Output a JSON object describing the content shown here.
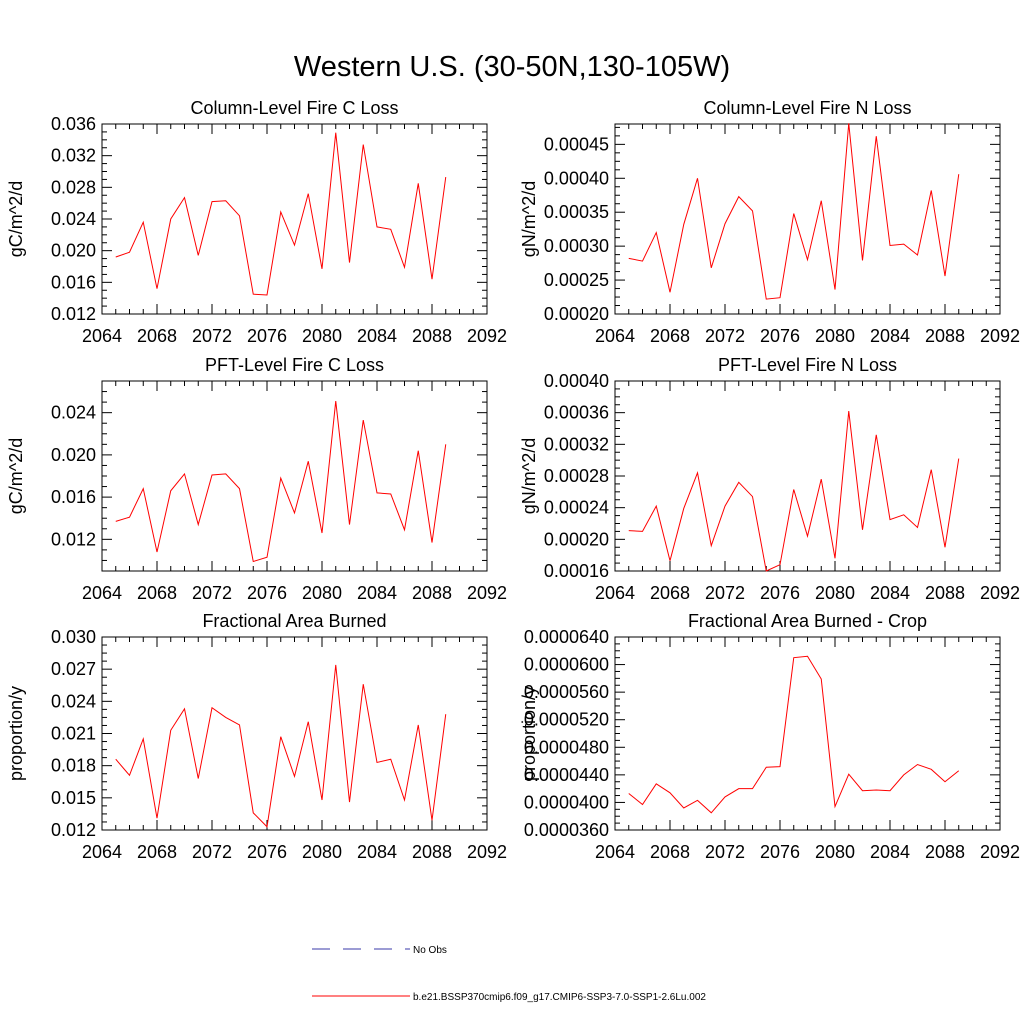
{
  "page_title": "Western U.S. (30-50N,130-105W)",
  "legend": {
    "obs_label": "No Obs",
    "model_label": "b.e21.BSSP370cmip6.f09_g17.CMIP6-SSP3-7.0-SSP1-2.6Lu.002",
    "model_color": "#ff0000",
    "obs_color": "#3a3aa8"
  },
  "chart_data": [
    {
      "type": "line",
      "title": "Column-Level Fire C Loss",
      "ylabel": "gC/m^2/d",
      "xlim": [
        2064,
        2092
      ],
      "ylim": [
        0.012,
        0.036
      ],
      "xticks": [
        "2064",
        "2068",
        "2072",
        "2076",
        "2080",
        "2084",
        "2088",
        "2092"
      ],
      "yticks": [
        "0.012",
        "0.016",
        "0.020",
        "0.024",
        "0.028",
        "0.032",
        "0.036"
      ],
      "series": [
        {
          "color": "#ff0000",
          "x": [
            2065,
            2066,
            2067,
            2068,
            2069,
            2070,
            2071,
            2072,
            2073,
            2074,
            2075,
            2076,
            2077,
            2078,
            2079,
            2080,
            2081,
            2082,
            2083,
            2084,
            2085,
            2086,
            2087,
            2088,
            2089
          ],
          "y": [
            0.0192,
            0.0198,
            0.0236,
            0.0152,
            0.024,
            0.0267,
            0.0194,
            0.0262,
            0.0263,
            0.0244,
            0.0145,
            0.0144,
            0.0249,
            0.0207,
            0.0272,
            0.0177,
            0.0349,
            0.0185,
            0.0334,
            0.023,
            0.0227,
            0.0179,
            0.0285,
            0.0164,
            0.0293
          ]
        }
      ]
    },
    {
      "type": "line",
      "title": "Column-Level Fire N Loss",
      "ylabel": "gN/m^2/d",
      "xlim": [
        2064,
        2092
      ],
      "ylim": [
        0.0002,
        0.00048
      ],
      "xticks": [
        "2064",
        "2068",
        "2072",
        "2076",
        "2080",
        "2084",
        "2088",
        "2092"
      ],
      "yticks": [
        "0.00020",
        "0.00025",
        "0.00030",
        "0.00035",
        "0.00040",
        "0.00045"
      ],
      "series": [
        {
          "color": "#ff0000",
          "x": [
            2065,
            2066,
            2067,
            2068,
            2069,
            2070,
            2071,
            2072,
            2073,
            2074,
            2075,
            2076,
            2077,
            2078,
            2079,
            2080,
            2081,
            2082,
            2083,
            2084,
            2085,
            2086,
            2087,
            2088,
            2089
          ],
          "y": [
            0.000282,
            0.000278,
            0.00032,
            0.000232,
            0.000332,
            0.0004,
            0.000268,
            0.000333,
            0.000373,
            0.000352,
            0.000222,
            0.000224,
            0.000348,
            0.00028,
            0.000367,
            0.000236,
            0.000481,
            0.000279,
            0.000462,
            0.000301,
            0.000303,
            0.000287,
            0.000382,
            0.000256,
            0.000406
          ]
        }
      ]
    },
    {
      "type": "line",
      "title": "PFT-Level Fire C Loss",
      "ylabel": "gC/m^2/d",
      "xlim": [
        2064,
        2092
      ],
      "ylim": [
        0.009,
        0.027
      ],
      "xticks": [
        "2064",
        "2068",
        "2072",
        "2076",
        "2080",
        "2084",
        "2088",
        "2092"
      ],
      "yticks": [
        "0.012",
        "0.016",
        "0.020",
        "0.024"
      ],
      "series": [
        {
          "color": "#ff0000",
          "x": [
            2065,
            2066,
            2067,
            2068,
            2069,
            2070,
            2071,
            2072,
            2073,
            2074,
            2075,
            2076,
            2077,
            2078,
            2079,
            2080,
            2081,
            2082,
            2083,
            2084,
            2085,
            2086,
            2087,
            2088,
            2089
          ],
          "y": [
            0.0137,
            0.0141,
            0.0168,
            0.0108,
            0.0166,
            0.0182,
            0.0134,
            0.0181,
            0.0182,
            0.0168,
            0.0099,
            0.0103,
            0.0178,
            0.0145,
            0.0194,
            0.0126,
            0.0251,
            0.0134,
            0.0233,
            0.0164,
            0.0163,
            0.0129,
            0.0204,
            0.0117,
            0.021
          ]
        }
      ]
    },
    {
      "type": "line",
      "title": "PFT-Level Fire N Loss",
      "ylabel": "gN/m^2/d",
      "xlim": [
        2064,
        2092
      ],
      "ylim": [
        0.00016,
        0.0004
      ],
      "xticks": [
        "2064",
        "2068",
        "2072",
        "2076",
        "2080",
        "2084",
        "2088",
        "2092"
      ],
      "yticks": [
        "0.00016",
        "0.00020",
        "0.00024",
        "0.00028",
        "0.00032",
        "0.00036",
        "0.00040"
      ],
      "series": [
        {
          "color": "#ff0000",
          "x": [
            2065,
            2066,
            2067,
            2068,
            2069,
            2070,
            2071,
            2072,
            2073,
            2074,
            2075,
            2076,
            2077,
            2078,
            2079,
            2080,
            2081,
            2082,
            2083,
            2084,
            2085,
            2086,
            2087,
            2088,
            2089
          ],
          "y": [
            0.000211,
            0.00021,
            0.000242,
            0.000173,
            0.000239,
            0.000284,
            0.000192,
            0.000242,
            0.000272,
            0.000254,
            0.00016,
            0.000168,
            0.000263,
            0.000204,
            0.000276,
            0.000176,
            0.000362,
            0.000212,
            0.000332,
            0.000225,
            0.000231,
            0.000215,
            0.000288,
            0.00019,
            0.000302
          ]
        }
      ]
    },
    {
      "type": "line",
      "title": "Fractional Area Burned",
      "ylabel": "proportion/y",
      "xlim": [
        2064,
        2092
      ],
      "ylim": [
        0.012,
        0.03
      ],
      "xticks": [
        "2064",
        "2068",
        "2072",
        "2076",
        "2080",
        "2084",
        "2088",
        "2092"
      ],
      "yticks": [
        "0.012",
        "0.015",
        "0.018",
        "0.021",
        "0.024",
        "0.027",
        "0.030"
      ],
      "series": [
        {
          "color": "#ff0000",
          "x": [
            2065,
            2066,
            2067,
            2068,
            2069,
            2070,
            2071,
            2072,
            2073,
            2074,
            2075,
            2076,
            2077,
            2078,
            2079,
            2080,
            2081,
            2082,
            2083,
            2084,
            2085,
            2086,
            2087,
            2088,
            2089
          ],
          "y": [
            0.0186,
            0.0171,
            0.0205,
            0.0131,
            0.0213,
            0.0233,
            0.0168,
            0.0234,
            0.0225,
            0.0218,
            0.0136,
            0.0123,
            0.0207,
            0.017,
            0.0221,
            0.0148,
            0.0274,
            0.0146,
            0.0256,
            0.0183,
            0.0186,
            0.0148,
            0.0218,
            0.0129,
            0.0228
          ]
        }
      ]
    },
    {
      "type": "line",
      "title": "Fractional Area Burned - Crop",
      "ylabel": "proportion/y",
      "xlim": [
        2064,
        2092
      ],
      "ylim": [
        3.6e-05,
        6.4e-05
      ],
      "xticks": [
        "2064",
        "2068",
        "2072",
        "2076",
        "2080",
        "2084",
        "2088",
        "2092"
      ],
      "yticks": [
        "0.0000360",
        "0.0000400",
        "0.0000440",
        "0.0000480",
        "0.0000520",
        "0.0000560",
        "0.0000600",
        "0.0000640"
      ],
      "series": [
        {
          "color": "#ff0000",
          "x": [
            2065,
            2066,
            2067,
            2068,
            2069,
            2070,
            2071,
            2072,
            2073,
            2074,
            2075,
            2076,
            2077,
            2078,
            2079,
            2080,
            2081,
            2082,
            2083,
            2084,
            2085,
            2086,
            2087,
            2088,
            2089
          ],
          "y": [
            4.13e-05,
            3.97e-05,
            4.27e-05,
            4.14e-05,
            3.92e-05,
            4.03e-05,
            3.85e-05,
            4.08e-05,
            4.2e-05,
            4.2e-05,
            4.51e-05,
            4.52e-05,
            6.1e-05,
            6.12e-05,
            5.79e-05,
            3.94e-05,
            4.41e-05,
            4.17e-05,
            4.18e-05,
            4.17e-05,
            4.4e-05,
            4.55e-05,
            4.48e-05,
            4.3e-05,
            4.46e-05
          ]
        }
      ]
    }
  ]
}
